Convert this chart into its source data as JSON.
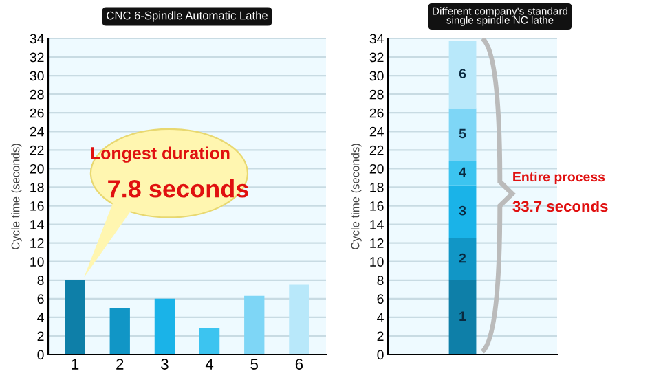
{
  "chart_data": [
    {
      "type": "bar",
      "title": "CNC 6-Spindle Automatic Lathe",
      "ylabel": "Cycle time (seconds)",
      "categories": [
        "1",
        "2",
        "3",
        "4",
        "5",
        "6"
      ],
      "values": [
        8.0,
        5.0,
        6.0,
        2.8,
        6.3,
        7.5
      ],
      "colors": [
        "#0e7fa8",
        "#1196c6",
        "#1ab3e8",
        "#3cc4f0",
        "#7ed6f6",
        "#b8e8fa"
      ],
      "ylim": [
        0,
        34
      ],
      "yticks": [
        0,
        2,
        4,
        6,
        8,
        10,
        12,
        14,
        16,
        18,
        20,
        22,
        24,
        26,
        28,
        30,
        32,
        34
      ],
      "grid": "y",
      "annotations": [
        "Longest duration",
        "7.8 seconds"
      ]
    },
    {
      "type": "bar",
      "title": "Different company's standard\nsingle spindle NC lathe",
      "ylabel": "Cycle time (seconds)",
      "categories": [
        null
      ],
      "stacked": true,
      "series": [
        {
          "name": "1",
          "color": "#0e7fa8",
          "values": [
            8.0
          ]
        },
        {
          "name": "2",
          "color": "#1196c6",
          "values": [
            4.5
          ]
        },
        {
          "name": "3",
          "color": "#1ab3e8",
          "values": [
            5.7
          ]
        },
        {
          "name": "4",
          "color": "#3cc4f0",
          "values": [
            2.6
          ]
        },
        {
          "name": "5",
          "color": "#7ed6f6",
          "values": [
            5.7
          ]
        },
        {
          "name": "6",
          "color": "#b8e8fa",
          "values": [
            7.2
          ]
        }
      ],
      "ylim": [
        0,
        34
      ],
      "yticks": [
        0,
        2,
        4,
        6,
        8,
        10,
        12,
        14,
        16,
        18,
        20,
        22,
        24,
        26,
        28,
        30,
        32,
        34
      ],
      "grid": "y",
      "annotations": [
        "Entire process",
        "33.7 seconds"
      ]
    }
  ]
}
